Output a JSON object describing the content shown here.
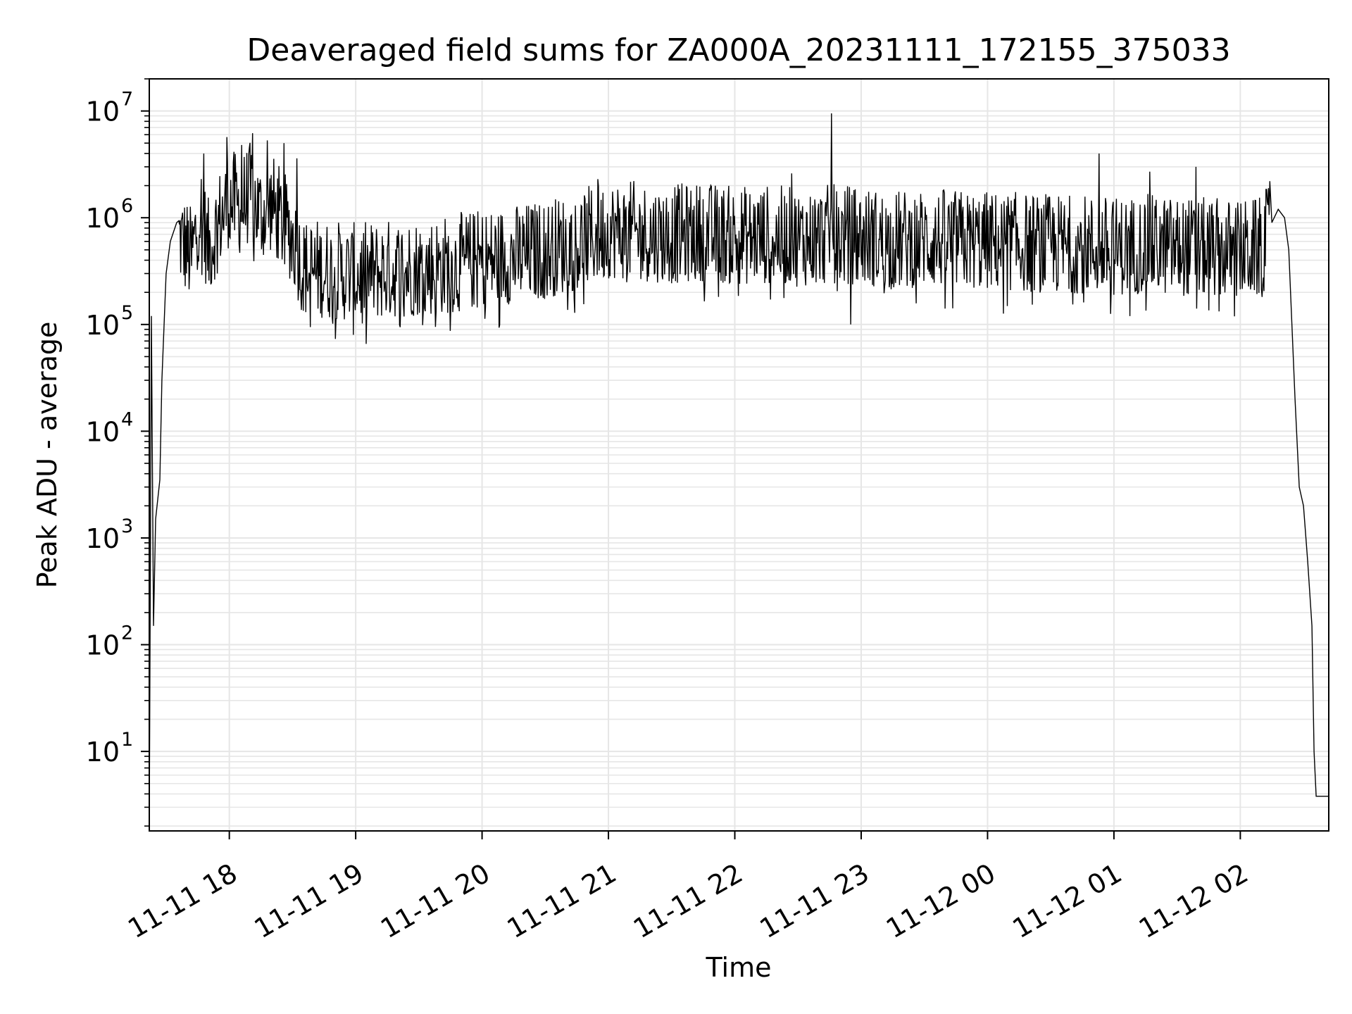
{
  "chart_data": {
    "type": "line",
    "title": "Deaveraged field sums for ZA000A_20231111_172155_375033",
    "xlabel": "Time",
    "ylabel": "Peak ADU - average",
    "yscale": "log",
    "xlim": [
      "2023-11-11 17:22",
      "2023-11-12 02:42"
    ],
    "ylim": [
      1.8,
      20000000
    ],
    "grid": true,
    "legend": "none",
    "line_color": "#000000",
    "grid_color": "#e6e6e6",
    "x_ticks": [
      {
        "value": "2023-11-11 18:00",
        "label": "11-11 18"
      },
      {
        "value": "2023-11-11 19:00",
        "label": "11-11 19"
      },
      {
        "value": "2023-11-11 20:00",
        "label": "11-11 20"
      },
      {
        "value": "2023-11-11 21:00",
        "label": "11-11 21"
      },
      {
        "value": "2023-11-11 22:00",
        "label": "11-11 22"
      },
      {
        "value": "2023-11-11 23:00",
        "label": "11-11 23"
      },
      {
        "value": "2023-11-12 00:00",
        "label": "11-12 00"
      },
      {
        "value": "2023-11-12 01:00",
        "label": "11-12 01"
      },
      {
        "value": "2023-11-12 02:00",
        "label": "11-12 02"
      }
    ],
    "y_ticks": [
      {
        "value": 10,
        "base": "10",
        "exp": "1"
      },
      {
        "value": 100,
        "base": "10",
        "exp": "2"
      },
      {
        "value": 1000,
        "base": "10",
        "exp": "3"
      },
      {
        "value": 10000,
        "base": "10",
        "exp": "4"
      },
      {
        "value": 100000,
        "base": "10",
        "exp": "5"
      },
      {
        "value": 1000000,
        "base": "10",
        "exp": "6"
      },
      {
        "value": 10000000,
        "base": "10",
        "exp": "7"
      }
    ],
    "series": [
      {
        "points": [
          [
            "2023-11-11 17:22",
            2.0
          ],
          [
            "2023-11-11 17:23",
            120000
          ],
          [
            "2023-11-11 17:24",
            150
          ],
          [
            "2023-11-11 17:25",
            1500
          ],
          [
            "2023-11-11 17:27",
            3500
          ],
          [
            "2023-11-11 17:28",
            30000
          ],
          [
            "2023-11-11 17:30",
            300000
          ],
          [
            "2023-11-11 17:32",
            600000
          ],
          [
            "2023-11-11 17:35",
            900000
          ],
          [
            "2023-11-11 17:38",
            700000
          ],
          [
            "2023-11-11 17:42",
            500000
          ],
          [
            "2023-11-11 17:46",
            1500000
          ],
          [
            "2023-11-11 17:50",
            600000
          ],
          [
            "2023-11-11 17:55",
            1100000
          ],
          [
            "2023-11-11 18:00",
            1800000
          ],
          [
            "2023-11-11 18:05",
            1500000
          ],
          [
            "2023-11-11 18:10",
            2000000
          ],
          [
            "2023-11-11 18:15",
            1300000
          ],
          [
            "2023-11-11 18:20",
            1600000
          ],
          [
            "2023-11-11 18:25",
            1100000
          ],
          [
            "2023-11-11 18:30",
            800000
          ],
          [
            "2023-11-11 18:35",
            400000
          ],
          [
            "2023-11-11 18:45",
            380000
          ],
          [
            "2023-11-11 19:00",
            350000
          ],
          [
            "2023-11-11 19:15",
            380000
          ],
          [
            "2023-11-11 19:30",
            400000
          ],
          [
            "2023-11-11 19:45",
            420000
          ],
          [
            "2023-11-11 20:00",
            480000
          ],
          [
            "2023-11-11 20:15",
            520000
          ],
          [
            "2023-11-11 20:30",
            580000
          ],
          [
            "2023-11-11 20:45",
            700000
          ],
          [
            "2023-11-11 21:00",
            900000
          ],
          [
            "2023-11-11 21:15",
            850000
          ],
          [
            "2023-11-11 21:30",
            800000
          ],
          [
            "2023-11-11 21:45",
            850000
          ],
          [
            "2023-11-11 22:00",
            780000
          ],
          [
            "2023-11-11 22:15",
            800000
          ],
          [
            "2023-11-11 22:30",
            750000
          ],
          [
            "2023-11-11 22:45",
            800000
          ],
          [
            "2023-11-11 23:00",
            780000
          ],
          [
            "2023-11-11 23:15",
            700000
          ],
          [
            "2023-11-11 23:30",
            750000
          ],
          [
            "2023-11-11 23:45",
            720000
          ],
          [
            "2023-11-12 00:00",
            700000
          ],
          [
            "2023-11-12 00:15",
            680000
          ],
          [
            "2023-11-12 00:30",
            650000
          ],
          [
            "2023-11-12 00:45",
            650000
          ],
          [
            "2023-11-12 01:00",
            620000
          ],
          [
            "2023-11-12 01:15",
            650000
          ],
          [
            "2023-11-12 01:30",
            620000
          ],
          [
            "2023-11-12 01:45",
            600000
          ],
          [
            "2023-11-12 02:00",
            580000
          ],
          [
            "2023-11-12 02:10",
            600000
          ],
          [
            "2023-11-12 02:15",
            900000
          ],
          [
            "2023-11-12 02:18",
            1200000
          ],
          [
            "2023-11-12 02:21",
            1000000
          ],
          [
            "2023-11-12 02:23",
            500000
          ],
          [
            "2023-11-12 02:26",
            20000
          ],
          [
            "2023-11-12 02:28",
            3000
          ],
          [
            "2023-11-12 02:30",
            2000
          ],
          [
            "2023-11-12 02:32",
            600
          ],
          [
            "2023-11-12 02:34",
            150
          ],
          [
            "2023-11-12 02:35",
            10
          ],
          [
            "2023-11-12 02:36",
            3.8
          ],
          [
            "2023-11-12 02:42",
            3.8
          ]
        ],
        "noise_band": {
          "from": "2023-11-11 17:36",
          "to": "2023-11-12 02:14",
          "low_factor": 0.3,
          "high_factor": 2.6
        },
        "spikes": [
          [
            "2023-11-11 17:48",
            4000000
          ],
          [
            "2023-11-11 17:59",
            5700000
          ],
          [
            "2023-11-11 18:06",
            4800000
          ],
          [
            "2023-11-11 18:11",
            6200000
          ],
          [
            "2023-11-11 18:18",
            5300000
          ],
          [
            "2023-11-11 18:26",
            5000000
          ],
          [
            "2023-11-11 18:32",
            3600000
          ],
          [
            "2023-11-11 18:59",
            80000
          ],
          [
            "2023-11-11 19:38",
            95000
          ],
          [
            "2023-11-11 20:55",
            2300000
          ],
          [
            "2023-11-11 22:27",
            2600000
          ],
          [
            "2023-11-11 22:46",
            9500000
          ],
          [
            "2023-11-11 22:55",
            100000
          ],
          [
            "2023-11-12 00:53",
            4000000
          ],
          [
            "2023-11-12 01:17",
            2700000
          ],
          [
            "2023-11-12 01:39",
            3000000
          ],
          [
            "2023-11-12 02:19",
            2200000
          ]
        ]
      }
    ]
  }
}
